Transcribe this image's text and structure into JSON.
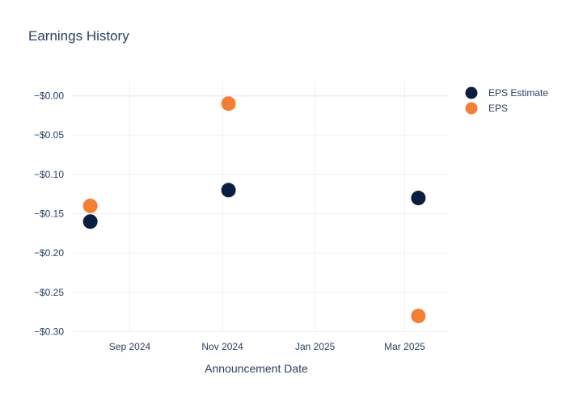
{
  "chart_data": {
    "type": "scatter",
    "title": "Earnings History",
    "xlabel": "Announcement Date",
    "ylabel": "",
    "x_ticks": [
      "Sep 2024",
      "Nov 2024",
      "Jan 2025",
      "Mar 2025"
    ],
    "y_ticks": [
      "−$0.00",
      "−$0.05",
      "−$0.10",
      "−$0.15",
      "−$0.20",
      "−$0.25",
      "−$0.30"
    ],
    "ylim": [
      -0.31,
      0.02
    ],
    "grid": true,
    "legend_position": "top-right",
    "series": [
      {
        "name": "EPS Estimate",
        "color": "#0c1e3f",
        "points": [
          {
            "x": "2024-08-06",
            "y": -0.16
          },
          {
            "x": "2024-11-05",
            "y": -0.12
          },
          {
            "x": "2025-03-10",
            "y": -0.13
          }
        ]
      },
      {
        "name": "EPS",
        "color": "#f47e34",
        "points": [
          {
            "x": "2024-08-06",
            "y": -0.14
          },
          {
            "x": "2024-11-05",
            "y": -0.01
          },
          {
            "x": "2025-03-10",
            "y": -0.28
          }
        ]
      }
    ]
  },
  "colors": {
    "text": "#2a3f5f",
    "grid": "#ebf0f8"
  }
}
